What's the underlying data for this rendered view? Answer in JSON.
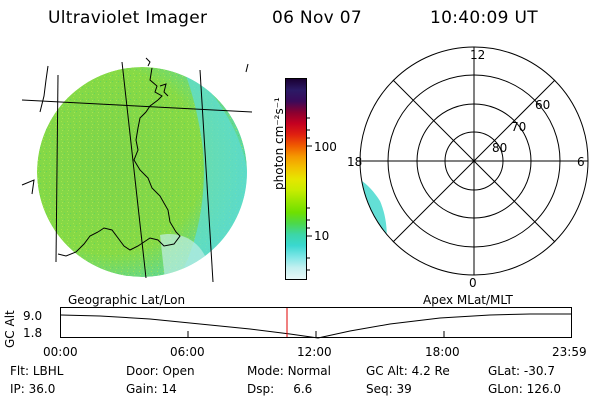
{
  "header": {
    "title": "Ultraviolet Imager",
    "date": "06 Nov 07",
    "time": "10:40:09 UT"
  },
  "colorbar": {
    "unit_label": "photon cm⁻²s⁻¹",
    "tick_labels": [
      "100",
      "10"
    ],
    "colors": [
      "#1a0033",
      "#2b1a66",
      "#3a0a5a",
      "#8a0030",
      "#c40020",
      "#e02010",
      "#f05a00",
      "#f59a00",
      "#f2c200",
      "#e6e600",
      "#c8ec00",
      "#9ae600",
      "#6ee000",
      "#4cd84a",
      "#3cd6a8",
      "#3ad8d0",
      "#7ee6e6",
      "#c4f0f0",
      "#e8f8f8"
    ]
  },
  "geo_map": {
    "label": "Geographic Lat/Lon"
  },
  "polar_plot": {
    "label": "Apex MLat/MLT",
    "mlt_labels": {
      "top": "12",
      "left": "18",
      "right": "6",
      "bottom": "0"
    },
    "lat_labels": [
      "60",
      "70",
      "80"
    ]
  },
  "timeline": {
    "axis_title": "GC Alt",
    "y_labels": [
      "9.0",
      "1.8"
    ],
    "x_labels": [
      "00:00",
      "06:00",
      "12:00",
      "18:00",
      "23:59"
    ],
    "marker_time": "10:40"
  },
  "info": {
    "row1": [
      {
        "label": "Flt:",
        "value": "LBHL"
      },
      {
        "label": "Door:",
        "value": "Open"
      },
      {
        "label": "Mode:",
        "value": "Normal"
      },
      {
        "label": "GC Alt:",
        "value": "4.2 Re"
      },
      {
        "label": "GLat:",
        "value": "-30.7"
      }
    ],
    "row2": [
      {
        "label": "IP:",
        "value": "36.0"
      },
      {
        "label": "Gain:",
        "value": "14"
      },
      {
        "label": "Dsp:",
        "value": "6.6"
      },
      {
        "label": "Seq:",
        "value": "39"
      },
      {
        "label": "GLon:",
        "value": "126.0"
      }
    ]
  },
  "colors": {
    "image_green": "#84d84a",
    "image_cyan": "#52dcd2",
    "marker_red": "#e00000"
  }
}
